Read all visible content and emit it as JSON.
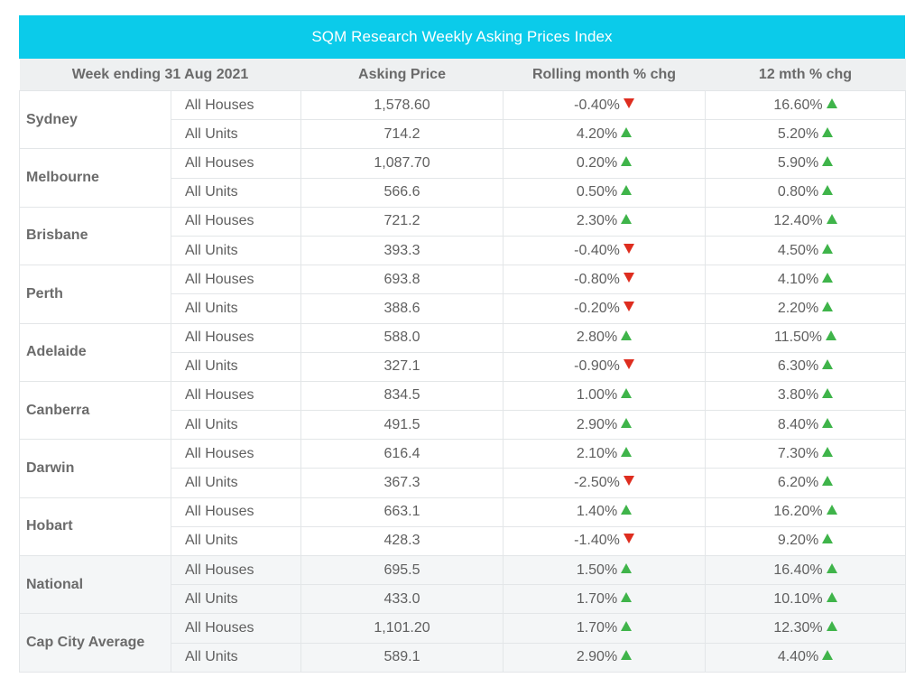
{
  "title": "SQM Research Weekly Asking Prices Index",
  "colors": {
    "header_bg": "#0bcbea",
    "up": "#3fb44a",
    "down": "#de2d1f",
    "shade": "#f4f6f7"
  },
  "columns": [
    "Week ending 31 Aug 2021",
    "Asking Price",
    "Rolling month % chg",
    "12 mth % chg"
  ],
  "groups": [
    {
      "city": "Sydney",
      "shaded": false,
      "rows": [
        {
          "type": "All Houses",
          "price": "1,578.60",
          "month": "-0.40%",
          "month_dir": "down",
          "year": "16.60%",
          "year_dir": "up"
        },
        {
          "type": "All Units",
          "price": "714.2",
          "month": "4.20%",
          "month_dir": "up",
          "year": "5.20%",
          "year_dir": "up"
        }
      ]
    },
    {
      "city": "Melbourne",
      "shaded": false,
      "rows": [
        {
          "type": "All Houses",
          "price": "1,087.70",
          "month": "0.20%",
          "month_dir": "up",
          "year": "5.90%",
          "year_dir": "up"
        },
        {
          "type": "All Units",
          "price": "566.6",
          "month": "0.50%",
          "month_dir": "up",
          "year": "0.80%",
          "year_dir": "up"
        }
      ]
    },
    {
      "city": "Brisbane",
      "shaded": false,
      "rows": [
        {
          "type": "All Houses",
          "price": "721.2",
          "month": "2.30%",
          "month_dir": "up",
          "year": "12.40%",
          "year_dir": "up"
        },
        {
          "type": "All Units",
          "price": "393.3",
          "month": "-0.40%",
          "month_dir": "down",
          "year": "4.50%",
          "year_dir": "up"
        }
      ]
    },
    {
      "city": "Perth",
      "shaded": false,
      "rows": [
        {
          "type": "All Houses",
          "price": "693.8",
          "month": "-0.80%",
          "month_dir": "down",
          "year": "4.10%",
          "year_dir": "up"
        },
        {
          "type": "All Units",
          "price": "388.6",
          "month": "-0.20%",
          "month_dir": "down",
          "year": "2.20%",
          "year_dir": "up"
        }
      ]
    },
    {
      "city": "Adelaide",
      "shaded": false,
      "rows": [
        {
          "type": "All Houses",
          "price": "588.0",
          "month": "2.80%",
          "month_dir": "up",
          "year": "11.50%",
          "year_dir": "up"
        },
        {
          "type": "All Units",
          "price": "327.1",
          "month": "-0.90%",
          "month_dir": "down",
          "year": "6.30%",
          "year_dir": "up"
        }
      ]
    },
    {
      "city": "Canberra",
      "shaded": false,
      "rows": [
        {
          "type": "All Houses",
          "price": "834.5",
          "month": "1.00%",
          "month_dir": "up",
          "year": "3.80%",
          "year_dir": "up"
        },
        {
          "type": "All Units",
          "price": "491.5",
          "month": "2.90%",
          "month_dir": "up",
          "year": "8.40%",
          "year_dir": "up"
        }
      ]
    },
    {
      "city": "Darwin",
      "shaded": false,
      "rows": [
        {
          "type": "All Houses",
          "price": "616.4",
          "month": "2.10%",
          "month_dir": "up",
          "year": "7.30%",
          "year_dir": "up"
        },
        {
          "type": "All Units",
          "price": "367.3",
          "month": "-2.50%",
          "month_dir": "down",
          "year": "6.20%",
          "year_dir": "up"
        }
      ]
    },
    {
      "city": "Hobart",
      "shaded": false,
      "rows": [
        {
          "type": "All Houses",
          "price": "663.1",
          "month": "1.40%",
          "month_dir": "up",
          "year": "16.20%",
          "year_dir": "up"
        },
        {
          "type": "All Units",
          "price": "428.3",
          "month": "-1.40%",
          "month_dir": "down",
          "year": "9.20%",
          "year_dir": "up"
        }
      ]
    },
    {
      "city": "National",
      "shaded": true,
      "rows": [
        {
          "type": "All Houses",
          "price": "695.5",
          "month": "1.50%",
          "month_dir": "up",
          "year": "16.40%",
          "year_dir": "up"
        },
        {
          "type": "All Units",
          "price": "433.0",
          "month": "1.70%",
          "month_dir": "up",
          "year": "10.10%",
          "year_dir": "up"
        }
      ]
    },
    {
      "city": "Cap City Average",
      "shaded": true,
      "rows": [
        {
          "type": "All Houses",
          "price": "1,101.20",
          "month": "1.70%",
          "month_dir": "up",
          "year": "12.30%",
          "year_dir": "up"
        },
        {
          "type": "All Units",
          "price": "589.1",
          "month": "2.90%",
          "month_dir": "up",
          "year": "4.40%",
          "year_dir": "up"
        }
      ]
    }
  ]
}
